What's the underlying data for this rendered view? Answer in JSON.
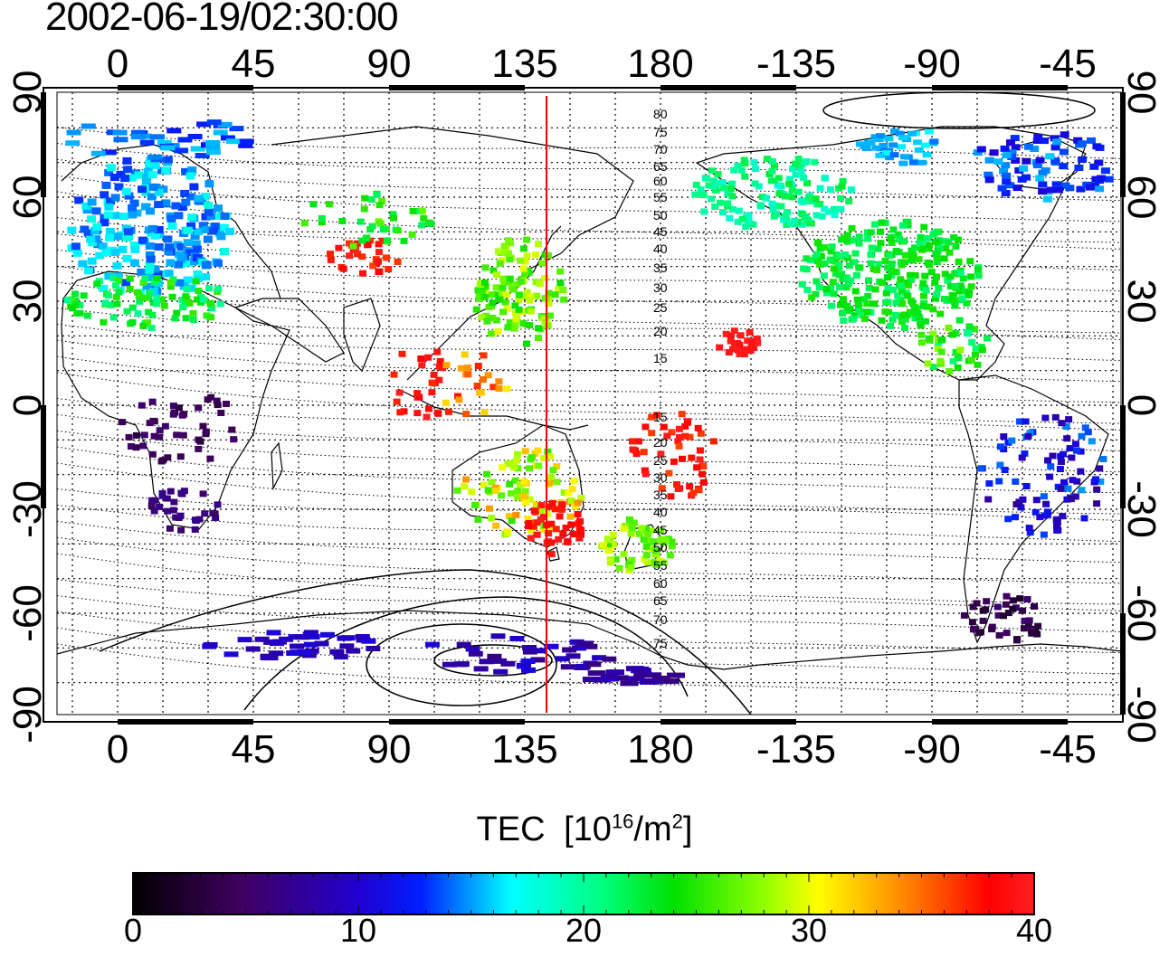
{
  "title": "2002-06-19/02:30:00",
  "map": {
    "lon_ticks_top": [
      "0",
      "45",
      "90",
      "135",
      "180",
      "-135",
      "-90",
      "-45"
    ],
    "lon_ticks_bottom": [
      "0",
      "45",
      "90",
      "135",
      "180",
      "-135",
      "-90",
      "-45"
    ],
    "lat_ticks_left": [
      "90",
      "60",
      "30",
      "0",
      "-30",
      "-60",
      "-90"
    ],
    "lat_ticks_right": [
      "90",
      "60",
      "30",
      "0",
      "-30",
      "-60",
      "-90"
    ],
    "contour_labels": [
      "80",
      "75",
      "70",
      "65",
      "60",
      "55",
      "50",
      "45",
      "40",
      "35",
      "30",
      "25",
      "20",
      "15",
      "15",
      "20",
      "25",
      "30",
      "35",
      "40",
      "45",
      "50",
      "55",
      "60",
      "65",
      "70",
      "75"
    ],
    "meridian_line_lon": 141,
    "colors": {
      "marker_line": "#ff0000"
    }
  },
  "colorbar": {
    "title": "TEC",
    "unit_prefix": "[10",
    "unit_exp": "16",
    "unit_mid": "/m",
    "unit_exp2": "2",
    "unit_suffix": "]",
    "ticks": [
      "0",
      "10",
      "20",
      "30",
      "40"
    ],
    "range": [
      0,
      40
    ]
  }
}
